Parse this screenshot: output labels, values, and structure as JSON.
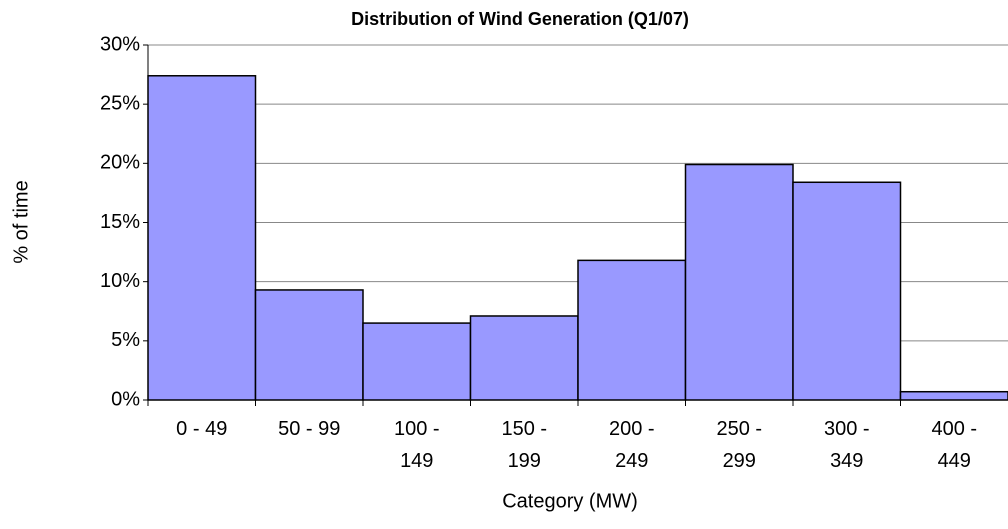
{
  "chart_data": {
    "type": "bar",
    "title": "Distribution of Wind Generation (Q1/07)",
    "x_label": "Category (MW)",
    "y_label": "% of time",
    "categories": [
      "0 - 49",
      "50 - 99",
      "100 - 149",
      "150 - 199",
      "200 - 249",
      "250 - 299",
      "300 - 349",
      "400 - 449"
    ],
    "values": [
      27.4,
      9.3,
      6.5,
      7.1,
      11.8,
      19.9,
      18.4,
      0.7
    ],
    "color": "#9999ff",
    "ylim": [
      0,
      30
    ],
    "yticks": [
      {
        "value": 0,
        "label": "0%"
      },
      {
        "value": 5,
        "label": "5%"
      },
      {
        "value": 10,
        "label": "10%"
      },
      {
        "value": 15,
        "label": "15%"
      },
      {
        "value": 20,
        "label": "20%"
      },
      {
        "value": 25,
        "label": "25%"
      },
      {
        "value": 30,
        "label": "30%"
      }
    ],
    "grid": true
  }
}
